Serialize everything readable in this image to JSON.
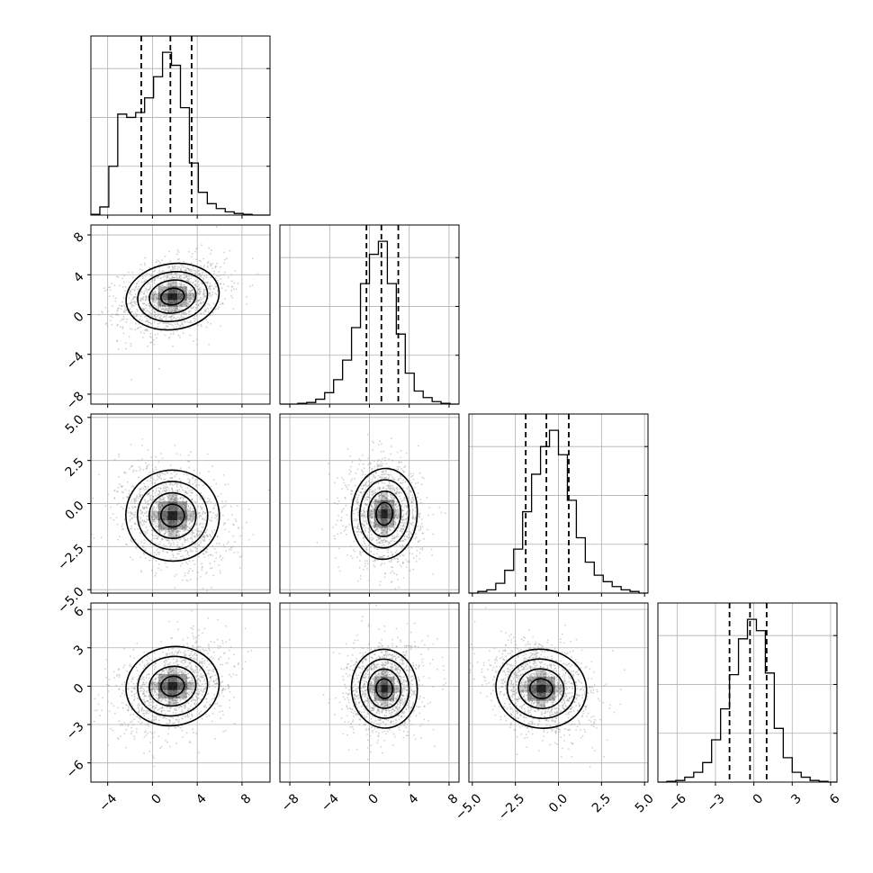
{
  "chart_data": {
    "type": "corner",
    "n_params": 4,
    "params": [
      {
        "index": 0,
        "mean": 1.6,
        "sd": 1.9,
        "range": [
          -5.5,
          10.5
        ],
        "ticks": [
          -4,
          0,
          4,
          8
        ],
        "tick_labels": [
          "−4",
          "0",
          "4",
          "8"
        ],
        "quantiles": [
          -1.0,
          1.6,
          3.5
        ]
      },
      {
        "index": 1,
        "mean": 1.2,
        "sd": 1.5,
        "range": [
          -9,
          9
        ],
        "ticks": [
          -8,
          -4,
          0,
          4,
          8
        ],
        "tick_labels": [
          "−8",
          "−4",
          "0",
          "4",
          "8"
        ],
        "quantiles": [
          -0.3,
          1.2,
          2.9
        ]
      },
      {
        "index": 2,
        "mean": -0.7,
        "sd": 1.2,
        "range": [
          -5.2,
          5.2
        ],
        "ticks": [
          -5,
          -2.5,
          0,
          2.5,
          5
        ],
        "tick_labels": [
          "−5.0",
          "−2.5",
          "0.0",
          "2.5",
          "5.0"
        ],
        "quantiles": [
          -1.9,
          -0.7,
          0.6
        ]
      },
      {
        "index": 3,
        "mean": -0.3,
        "sd": 1.4,
        "range": [
          -7.5,
          6.5
        ],
        "ticks": [
          -6,
          -3,
          0,
          3,
          6
        ],
        "tick_labels": [
          "−6",
          "−3",
          "0",
          "3",
          "6"
        ],
        "quantiles": [
          -1.9,
          -0.3,
          1.0
        ]
      }
    ],
    "histograms": [
      [
        0.005,
        0.05,
        0.3,
        0.62,
        0.6,
        0.63,
        0.72,
        0.85,
        1.0,
        0.92,
        0.66,
        0.32,
        0.14,
        0.07,
        0.04,
        0.02,
        0.01,
        0.005,
        0.0,
        0.0
      ],
      [
        0.0,
        0.0,
        0.005,
        0.01,
        0.03,
        0.07,
        0.15,
        0.27,
        0.47,
        0.74,
        0.92,
        1.0,
        0.74,
        0.43,
        0.19,
        0.08,
        0.04,
        0.015,
        0.005,
        0.0
      ],
      [
        0.0,
        0.01,
        0.02,
        0.06,
        0.14,
        0.27,
        0.5,
        0.73,
        0.9,
        1.0,
        0.85,
        0.57,
        0.34,
        0.19,
        0.11,
        0.07,
        0.04,
        0.02,
        0.01,
        0.0
      ],
      [
        0.0,
        0.005,
        0.01,
        0.03,
        0.06,
        0.12,
        0.26,
        0.45,
        0.66,
        0.88,
        1.0,
        0.93,
        0.67,
        0.33,
        0.15,
        0.06,
        0.03,
        0.01,
        0.005,
        0.0
      ]
    ],
    "pairs": [
      {
        "row": 1,
        "col": 0,
        "center": [
          1.8,
          1.8
        ],
        "sx": 1.9,
        "sy": 1.5,
        "rho": 0.25
      },
      {
        "row": 2,
        "col": 0,
        "center": [
          1.8,
          -0.7
        ],
        "sx": 1.9,
        "sy": 1.2,
        "rho": -0.3
      },
      {
        "row": 2,
        "col": 1,
        "center": [
          1.5,
          -0.6
        ],
        "sx": 1.5,
        "sy": 1.2,
        "rho": -0.1
      },
      {
        "row": 3,
        "col": 0,
        "center": [
          1.8,
          0.0
        ],
        "sx": 1.9,
        "sy": 1.4,
        "rho": 0.3
      },
      {
        "row": 3,
        "col": 1,
        "center": [
          1.5,
          -0.2
        ],
        "sx": 1.5,
        "sy": 1.4,
        "rho": 0.1
      },
      {
        "row": 3,
        "col": 2,
        "center": [
          -1.0,
          -0.2
        ],
        "sx": 1.2,
        "sy": 1.4,
        "rho": -0.25
      }
    ],
    "contour_levels_sigma": [
      0.5,
      1.0,
      1.5,
      2.0
    ],
    "grid": true
  }
}
